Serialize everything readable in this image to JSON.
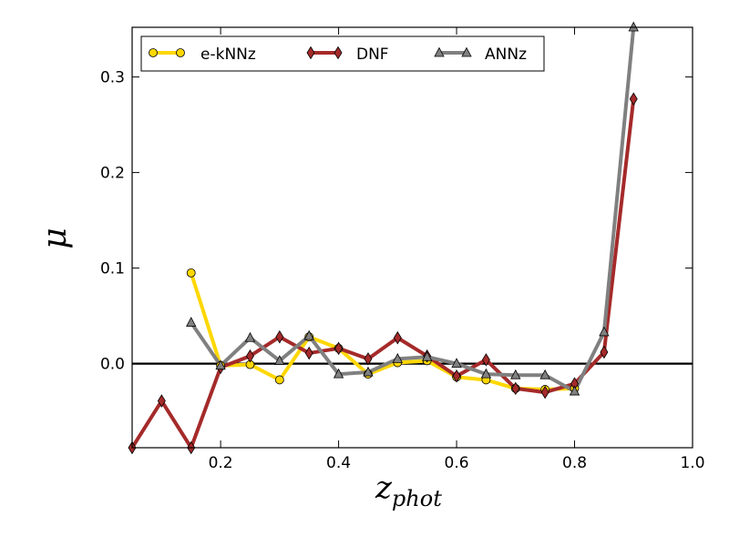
{
  "chart_data": {
    "type": "line",
    "title": "",
    "xlabel": "z",
    "xlabel_sub": "phot",
    "ylabel": "μ",
    "xlim": [
      0.05,
      1.0
    ],
    "ylim": [
      -0.088,
      0.352
    ],
    "xticks": [
      0.2,
      0.4,
      0.6,
      0.8,
      1.0
    ],
    "xtick_labels": [
      "0.2",
      "0.4",
      "0.6",
      "0.8",
      "1.0"
    ],
    "yticks": [
      0.0,
      0.1,
      0.2,
      0.3
    ],
    "ytick_labels": [
      "0.0",
      "0.1",
      "0.2",
      "0.3"
    ],
    "reference_line_y": 0.0,
    "legend_position": "top-left",
    "series": [
      {
        "name": "e-kNNz",
        "color": "#FFD700",
        "marker": "circle",
        "x": [
          0.15,
          0.2,
          0.25,
          0.3,
          0.35,
          0.4,
          0.45,
          0.5,
          0.55,
          0.6,
          0.65,
          0.7,
          0.75,
          0.8
        ],
        "y": [
          0.095,
          -0.002,
          -0.001,
          -0.017,
          0.028,
          0.016,
          -0.011,
          0.001,
          0.003,
          -0.014,
          -0.017,
          -0.026,
          -0.027,
          -0.026
        ]
      },
      {
        "name": "DNF",
        "color": "#A52A2A",
        "marker": "diamond",
        "x": [
          0.05,
          0.1,
          0.15,
          0.2,
          0.25,
          0.3,
          0.35,
          0.4,
          0.45,
          0.5,
          0.55,
          0.6,
          0.65,
          0.7,
          0.75,
          0.8,
          0.85,
          0.9
        ],
        "y": [
          -0.088,
          -0.039,
          -0.088,
          -0.004,
          0.008,
          0.028,
          0.011,
          0.016,
          0.005,
          0.027,
          0.008,
          -0.013,
          0.004,
          -0.026,
          -0.03,
          -0.021,
          0.012,
          0.277
        ]
      },
      {
        "name": "ANNz",
        "color": "#808080",
        "marker": "triangle",
        "x": [
          0.15,
          0.2,
          0.25,
          0.3,
          0.35,
          0.4,
          0.45,
          0.5,
          0.55,
          0.6,
          0.65,
          0.7,
          0.75,
          0.8,
          0.85,
          0.9
        ],
        "y": [
          0.043,
          -0.002,
          0.027,
          0.003,
          0.029,
          -0.011,
          -0.009,
          0.005,
          0.007,
          0.0,
          -0.011,
          -0.012,
          -0.012,
          -0.029,
          0.033,
          0.352
        ]
      }
    ]
  }
}
